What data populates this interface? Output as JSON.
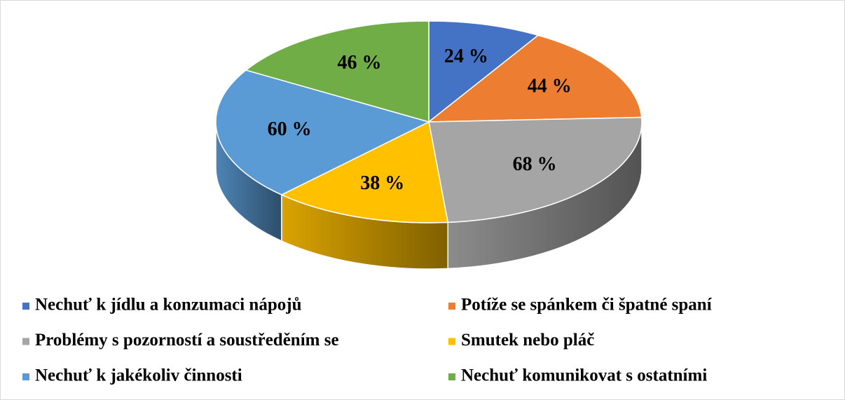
{
  "chart_data": {
    "type": "pie",
    "categories": [
      "Nechuť k jídlu a konzumaci nápojů",
      "Potíže se spánkem či špatné spaní",
      "Problémy s pozorností a soustředěním se",
      "Smutek nebo pláč",
      "Nechuť k jakékoliv činnosti",
      "Nechuť komunikovat s ostatními"
    ],
    "values": [
      24,
      44,
      68,
      38,
      60,
      46
    ],
    "value_labels": [
      "24 %",
      "44 %",
      "68 %",
      "38 %",
      "60 %",
      "46 %"
    ],
    "colors": [
      "#4472c4",
      "#ed7d31",
      "#a5a5a5",
      "#ffc000",
      "#5b9bd5",
      "#70ad47"
    ],
    "legend": "bottom"
  }
}
